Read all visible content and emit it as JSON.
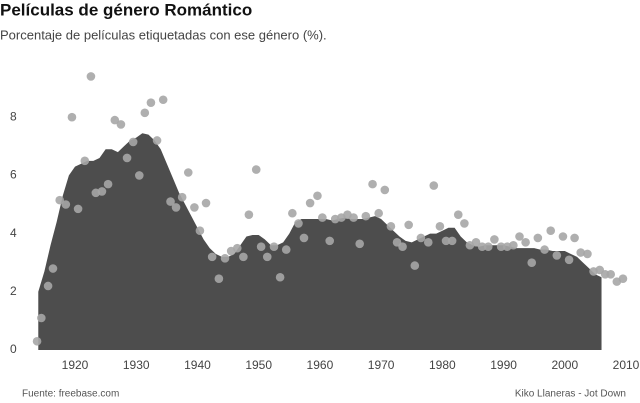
{
  "chart_data": {
    "type": "area",
    "title": "Películas de género Romántico",
    "subtitle": "Porcentaje de películas etiquetadas con ese género (%).",
    "source": "Fuente: freebase.com",
    "credit": "Kiko Llaneras - Jot Down",
    "xlim": [
      1912.5,
      2011.5
    ],
    "xticks": [
      1920,
      1930,
      1940,
      1950,
      1960,
      1970,
      1980,
      1990,
      2000,
      2010
    ],
    "ylim": [
      0,
      10
    ],
    "yticks": [
      0,
      2,
      4,
      6,
      8
    ],
    "grid": false,
    "series": [
      {
        "type": "area",
        "color": "#4d4d4d",
        "x": [
          1914,
          1915,
          1916,
          1917,
          1918,
          1919,
          1920,
          1921,
          1922,
          1923,
          1924,
          1925,
          1926,
          1927,
          1928,
          1929,
          1930,
          1931,
          1932,
          1933,
          1934,
          1935,
          1936,
          1937,
          1938,
          1939,
          1940,
          1941,
          1942,
          1943,
          1944,
          1945,
          1946,
          1947,
          1948,
          1949,
          1950,
          1951,
          1952,
          1953,
          1954,
          1955,
          1956,
          1957,
          1958,
          1959,
          1960,
          1961,
          1962,
          1963,
          1964,
          1965,
          1966,
          1967,
          1968,
          1969,
          1970,
          1971,
          1972,
          1973,
          1974,
          1975,
          1976,
          1977,
          1978,
          1979,
          1980,
          1981,
          1982,
          1983,
          1984,
          1985,
          1986,
          1987,
          1988,
          1989,
          1990,
          1991,
          1992,
          1993,
          1994,
          1995,
          1996,
          1997,
          1998,
          1999,
          2000,
          2001,
          2002,
          2003,
          2004,
          2005,
          2006
        ],
        "values": [
          2.0,
          2.7,
          3.6,
          4.4,
          5.3,
          6.0,
          6.3,
          6.4,
          6.5,
          6.5,
          6.6,
          6.9,
          6.9,
          6.8,
          7.0,
          7.2,
          7.3,
          7.45,
          7.4,
          7.2,
          6.9,
          6.4,
          5.9,
          5.4,
          5.0,
          4.6,
          4.2,
          3.8,
          3.5,
          3.3,
          3.2,
          3.2,
          3.3,
          3.6,
          3.9,
          3.95,
          3.95,
          3.8,
          3.6,
          3.6,
          3.7,
          4.0,
          4.4,
          4.5,
          4.5,
          4.5,
          4.5,
          4.5,
          4.45,
          4.5,
          4.55,
          4.5,
          4.5,
          4.5,
          4.55,
          4.6,
          4.5,
          4.3,
          4.1,
          3.9,
          3.75,
          3.7,
          3.8,
          3.9,
          4.0,
          4.0,
          4.1,
          4.2,
          4.2,
          3.9,
          3.7,
          3.6,
          3.55,
          3.6,
          3.6,
          3.6,
          3.6,
          3.55,
          3.5,
          3.5,
          3.5,
          3.5,
          3.45,
          3.45,
          3.4,
          3.4,
          3.4,
          3.3,
          3.2,
          3.0,
          2.8,
          2.6,
          2.5
        ]
      },
      {
        "type": "scatter",
        "color": "#a6a6a6",
        "x": [
          1913.8,
          1914.5,
          1915.6,
          1916.4,
          1917.5,
          1918.5,
          1919.5,
          1920.5,
          1921.6,
          1922.6,
          1923.4,
          1924.4,
          1925.4,
          1926.5,
          1927.5,
          1928.5,
          1929.5,
          1930.5,
          1931.4,
          1932.4,
          1933.4,
          1934.4,
          1935.6,
          1936.5,
          1937.5,
          1938.5,
          1939.5,
          1940.4,
          1941.4,
          1942.4,
          1943.5,
          1944.5,
          1945.5,
          1946.5,
          1947.5,
          1948.4,
          1949.6,
          1950.4,
          1951.4,
          1952.5,
          1953.5,
          1954.5,
          1955.5,
          1956.5,
          1957.4,
          1958.4,
          1959.6,
          1960.4,
          1961.6,
          1962.5,
          1963.5,
          1964.5,
          1965.5,
          1966.5,
          1967.5,
          1968.6,
          1969.6,
          1970.6,
          1971.6,
          1972.6,
          1973.5,
          1974.5,
          1975.5,
          1976.5,
          1977.7,
          1978.6,
          1979.6,
          1980.6,
          1981.6,
          1982.6,
          1983.6,
          1984.5,
          1985.5,
          1986.5,
          1987.5,
          1988.5,
          1989.6,
          1990.6,
          1991.6,
          1992.6,
          1993.6,
          1994.6,
          1995.6,
          1996.7,
          1997.7,
          1998.7,
          1999.7,
          2000.7,
          2001.6,
          2002.6,
          2003.7,
          2004.7,
          2005.7,
          2006.6,
          2007.5,
          2008.5,
          2009.5
        ],
        "values": [
          0.3,
          1.1,
          2.2,
          2.8,
          5.15,
          5.0,
          8.0,
          4.85,
          6.5,
          9.4,
          5.4,
          5.45,
          5.7,
          7.9,
          7.75,
          6.6,
          7.15,
          6.0,
          8.15,
          8.5,
          7.2,
          8.6,
          5.1,
          4.9,
          5.25,
          6.1,
          4.9,
          4.1,
          5.05,
          3.2,
          2.45,
          3.15,
          3.4,
          3.5,
          3.2,
          4.65,
          6.2,
          3.55,
          3.2,
          3.55,
          2.5,
          3.45,
          4.7,
          4.35,
          3.85,
          5.05,
          5.3,
          4.55,
          3.75,
          4.5,
          4.55,
          4.65,
          4.55,
          3.65,
          4.6,
          5.7,
          4.7,
          5.5,
          4.25,
          3.7,
          3.55,
          4.3,
          2.9,
          3.85,
          3.7,
          5.65,
          4.25,
          3.75,
          3.75,
          4.65,
          4.35,
          3.6,
          3.7,
          3.55,
          3.55,
          3.8,
          3.55,
          3.55,
          3.6,
          3.9,
          3.7,
          3.0,
          3.85,
          3.45,
          4.1,
          3.25,
          3.9,
          3.1,
          3.85,
          3.35,
          3.3,
          2.7,
          2.75,
          2.6,
          2.6,
          2.35,
          2.45
        ]
      }
    ]
  }
}
